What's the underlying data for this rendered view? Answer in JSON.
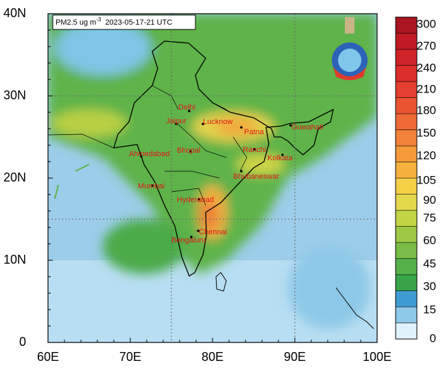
{
  "title": {
    "main": "PM2.5 ug m",
    "sup": "-3",
    "time": "2023-05-17-21 UTC"
  },
  "axes": {
    "x_labels": [
      "60E",
      "70E",
      "80E",
      "90E",
      "100E"
    ],
    "y_labels": [
      "0",
      "10N",
      "20N",
      "30N",
      "40N"
    ]
  },
  "colorbar": {
    "levels": [
      0,
      15,
      30,
      45,
      60,
      75,
      90,
      105,
      120,
      135,
      150,
      165,
      180,
      195,
      210,
      225,
      240,
      255,
      270,
      285,
      300
    ],
    "labels": [
      "0",
      "15",
      "30",
      "45",
      "60",
      "75",
      "90",
      "105",
      "120",
      "150",
      "180",
      "210",
      "240",
      "270",
      "300"
    ],
    "colors": [
      "#dff1fa",
      "#8ec8e8",
      "#3f9cd2",
      "#38a44a",
      "#55b04a",
      "#79bd48",
      "#9dc946",
      "#c2d444",
      "#e3d84a",
      "#f5cf46",
      "#f6b23e",
      "#f59a3a",
      "#f2823a",
      "#ee6a36",
      "#ea5433",
      "#e43f30",
      "#dc2e2c",
      "#cf2229",
      "#bf1a25",
      "#a81520"
    ]
  },
  "cities": [
    "Delhi",
    "Jaipur",
    "Lucknow",
    "Patna",
    "Guwahati",
    "Ahmedabad",
    "Bhopal",
    "Ranchi",
    "Kolkata",
    "Mumbai",
    "Bhubaneswar",
    "Hyderabad",
    "Chennai",
    "Bengaluru"
  ]
}
